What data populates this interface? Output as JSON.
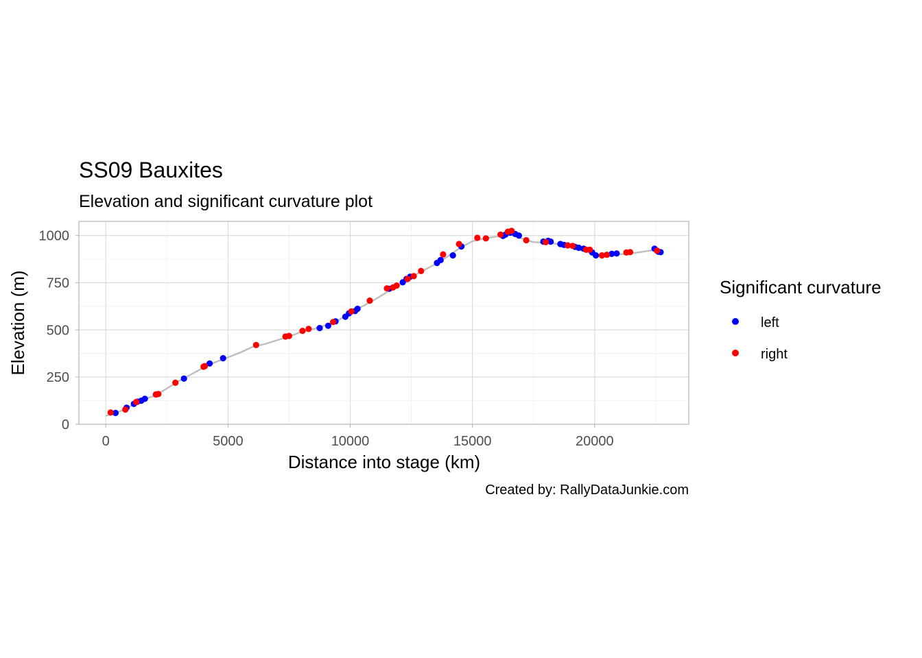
{
  "chart_data": {
    "type": "scatter",
    "title": "SS09 Bauxites",
    "subtitle": "Elevation and significant curvature plot",
    "xlabel": "Distance into stage (km)",
    "ylabel": "Elevation (m)",
    "caption": "Created by: RallyDataJunkie.com",
    "xlim": [
      -1100,
      23850
    ],
    "ylim": [
      0,
      1075
    ],
    "xticks": [
      0,
      5000,
      10000,
      15000,
      20000
    ],
    "xtick_labels": [
      "0",
      "5000",
      "10000",
      "15000",
      "20000"
    ],
    "yticks": [
      0,
      250,
      500,
      750,
      1000
    ],
    "ytick_labels": [
      "0",
      "250",
      "500",
      "750",
      "1000"
    ],
    "grid": true,
    "legend": {
      "title": "Significant curvature",
      "placement": "right",
      "entries": [
        {
          "label": "left",
          "color": "#0000ff"
        },
        {
          "label": "right",
          "color": "#ff0000"
        }
      ]
    },
    "profile_color": "#bebebe",
    "profile": [
      [
        0,
        45
      ],
      [
        400,
        60
      ],
      [
        800,
        80
      ],
      [
        1200,
        110
      ],
      [
        1600,
        135
      ],
      [
        2000,
        150
      ],
      [
        2500,
        190
      ],
      [
        3000,
        230
      ],
      [
        3500,
        265
      ],
      [
        4000,
        300
      ],
      [
        4500,
        330
      ],
      [
        5000,
        355
      ],
      [
        5500,
        380
      ],
      [
        6000,
        410
      ],
      [
        6500,
        425
      ],
      [
        7000,
        445
      ],
      [
        7500,
        465
      ],
      [
        8000,
        490
      ],
      [
        8500,
        505
      ],
      [
        9000,
        525
      ],
      [
        9500,
        550
      ],
      [
        10000,
        590
      ],
      [
        10500,
        625
      ],
      [
        11000,
        660
      ],
      [
        11500,
        700
      ],
      [
        12000,
        740
      ],
      [
        12500,
        780
      ],
      [
        13000,
        815
      ],
      [
        13500,
        850
      ],
      [
        14000,
        890
      ],
      [
        14500,
        935
      ],
      [
        15000,
        970
      ],
      [
        15500,
        985
      ],
      [
        16000,
        995
      ],
      [
        16500,
        1010
      ],
      [
        17000,
        985
      ],
      [
        17500,
        965
      ],
      [
        18000,
        962
      ],
      [
        18500,
        955
      ],
      [
        19000,
        940
      ],
      [
        19500,
        920
      ],
      [
        20000,
        900
      ],
      [
        20500,
        898
      ],
      [
        21000,
        900
      ],
      [
        21500,
        905
      ],
      [
        22000,
        915
      ],
      [
        22500,
        925
      ],
      [
        22700,
        912
      ]
    ],
    "series": [
      {
        "name": "left",
        "color": "#0000ff",
        "points": [
          [
            400,
            60
          ],
          [
            850,
            88
          ],
          [
            1150,
            108
          ],
          [
            1300,
            120
          ],
          [
            1450,
            125
          ],
          [
            1600,
            135
          ],
          [
            3200,
            242
          ],
          [
            4250,
            322
          ],
          [
            4800,
            350
          ],
          [
            8750,
            510
          ],
          [
            9100,
            522
          ],
          [
            9400,
            545
          ],
          [
            9800,
            570
          ],
          [
            9950,
            588
          ],
          [
            10200,
            600
          ],
          [
            10300,
            612
          ],
          [
            11600,
            718
          ],
          [
            12150,
            752
          ],
          [
            12300,
            770
          ],
          [
            12450,
            782
          ],
          [
            13550,
            855
          ],
          [
            13700,
            870
          ],
          [
            14200,
            895
          ],
          [
            14550,
            942
          ],
          [
            16250,
            998
          ],
          [
            16350,
            1005
          ],
          [
            16550,
            1015
          ],
          [
            16750,
            1008
          ],
          [
            16900,
            1000
          ],
          [
            17900,
            968
          ],
          [
            18100,
            972
          ],
          [
            18200,
            968
          ],
          [
            18600,
            955
          ],
          [
            18750,
            950
          ],
          [
            19200,
            940
          ],
          [
            19350,
            935
          ],
          [
            19550,
            930
          ],
          [
            19900,
            910
          ],
          [
            20050,
            895
          ],
          [
            20700,
            903
          ],
          [
            20900,
            905
          ],
          [
            22450,
            930
          ],
          [
            22600,
            915
          ],
          [
            22700,
            912
          ]
        ]
      },
      {
        "name": "right",
        "color": "#ff0000",
        "points": [
          [
            200,
            62
          ],
          [
            800,
            78
          ],
          [
            1250,
            118
          ],
          [
            2050,
            158
          ],
          [
            2150,
            160
          ],
          [
            2850,
            220
          ],
          [
            4000,
            305
          ],
          [
            4050,
            308
          ],
          [
            6150,
            420
          ],
          [
            7350,
            465
          ],
          [
            7500,
            468
          ],
          [
            8050,
            495
          ],
          [
            8300,
            505
          ],
          [
            9300,
            542
          ],
          [
            10050,
            598
          ],
          [
            10800,
            655
          ],
          [
            11500,
            720
          ],
          [
            11750,
            725
          ],
          [
            11900,
            735
          ],
          [
            12350,
            770
          ],
          [
            12600,
            785
          ],
          [
            12900,
            812
          ],
          [
            13800,
            900
          ],
          [
            14450,
            955
          ],
          [
            15200,
            988
          ],
          [
            15550,
            985
          ],
          [
            16150,
            1005
          ],
          [
            16450,
            1020
          ],
          [
            16600,
            1025
          ],
          [
            17200,
            975
          ],
          [
            18000,
            965
          ],
          [
            18900,
            948
          ],
          [
            19100,
            945
          ],
          [
            19650,
            925
          ],
          [
            19800,
            925
          ],
          [
            20300,
            895
          ],
          [
            20500,
            898
          ],
          [
            21300,
            910
          ],
          [
            21450,
            912
          ],
          [
            22550,
            920
          ]
        ]
      }
    ]
  }
}
